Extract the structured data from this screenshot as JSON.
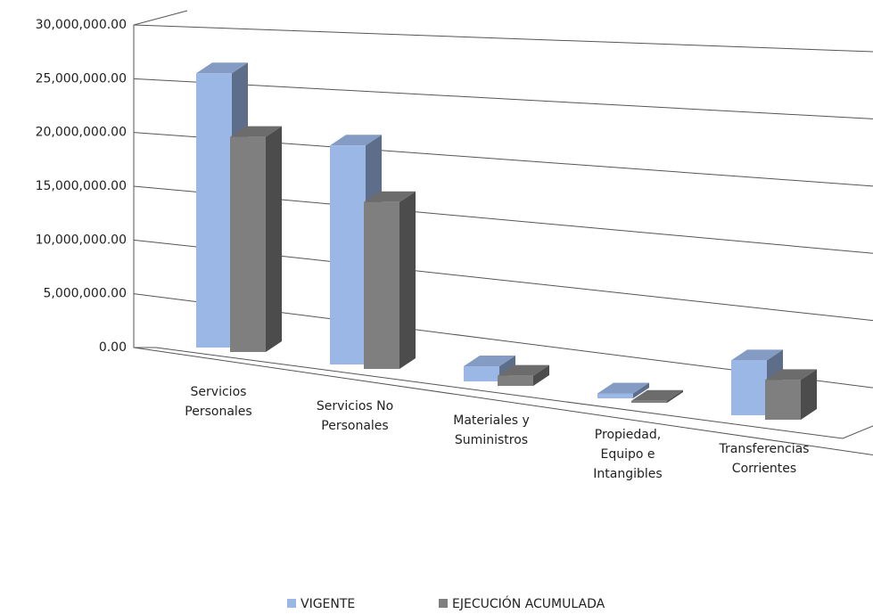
{
  "chart_data": {
    "type": "bar3d",
    "categories": [
      [
        "Servicios",
        "Personales"
      ],
      [
        "Servicios No",
        "Personales"
      ],
      [
        "Materiales y",
        "Suministros"
      ],
      [
        "Propiedad,",
        "Equipo e",
        "Intangibles"
      ],
      [
        "Transferencias",
        "Corrientes"
      ]
    ],
    "series": [
      {
        "name": "VIGENTE",
        "color": "#9bb7e6",
        "values": [
          25500000,
          21000000,
          1500000,
          500000,
          5800000
        ]
      },
      {
        "name": "EJECUCIÓN ACUMULADA",
        "color": "#7f7f7f",
        "values": [
          20000000,
          16000000,
          1000000,
          200000,
          4200000
        ]
      }
    ],
    "ylim": [
      0,
      30000000
    ],
    "yticks": [
      {
        "value": 0,
        "label": "0.00"
      },
      {
        "value": 5000000,
        "label": "5,000,000.00"
      },
      {
        "value": 10000000,
        "label": "10,000,000.00"
      },
      {
        "value": 15000000,
        "label": "15,000,000.00"
      },
      {
        "value": 20000000,
        "label": "20,000,000.00"
      },
      {
        "value": 25000000,
        "label": "25,000,000.00"
      },
      {
        "value": 30000000,
        "label": "30,000,000.00"
      }
    ],
    "grid": true,
    "legend": "bottom"
  }
}
